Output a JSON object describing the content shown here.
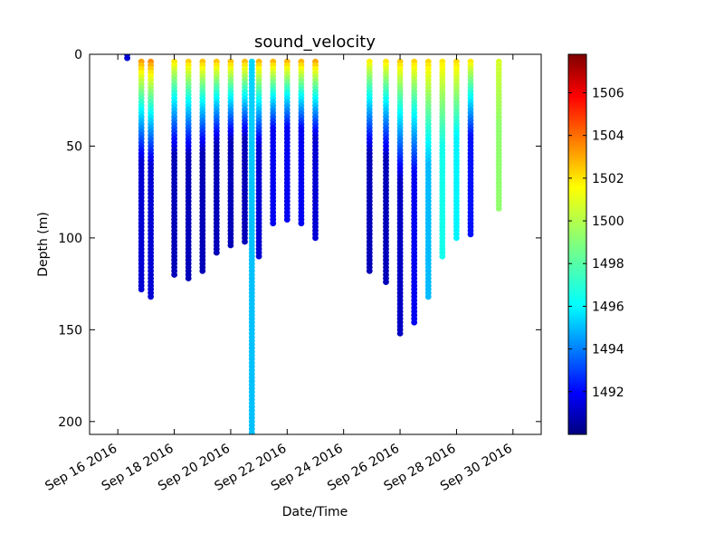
{
  "chart_data": {
    "type": "scatter",
    "title": "sound_velocity",
    "xlabel": "Date/Time",
    "ylabel": "Depth (m)",
    "x_ticks": [
      "Sep 16 2016",
      "Sep 18 2016",
      "Sep 20 2016",
      "Sep 22 2016",
      "Sep 24 2016",
      "Sep 26 2016",
      "Sep 28 2016",
      "Sep 30 2016"
    ],
    "xlim": [
      "2016-09-15",
      "2016-10-01"
    ],
    "ylim": [
      207,
      0
    ],
    "y_inverted": true,
    "y_ticks": [
      "0",
      "50",
      "100",
      "150",
      "200"
    ],
    "grid": false,
    "colorbar": {
      "colormap": "jet",
      "range": [
        1490,
        1507.8
      ],
      "ticks": [
        "1492",
        "1494",
        "1496",
        "1498",
        "1500",
        "1502",
        "1504",
        "1506"
      ]
    },
    "casts": [
      {
        "date": "2016-09-16T08:00",
        "max_depth": 2,
        "sv_surface": 1491.5,
        "sv_deep": 1491.5
      },
      {
        "date": "2016-09-16T20:00",
        "max_depth": 128,
        "sv_surface": 1504.3,
        "sv_deep": 1491.5
      },
      {
        "date": "2016-09-17T04:00",
        "max_depth": 133,
        "sv_surface": 1504.6,
        "sv_deep": 1491.5
      },
      {
        "date": "2016-09-18T00:00",
        "max_depth": 120,
        "sv_surface": 1503.0,
        "sv_deep": 1491.0
      },
      {
        "date": "2016-09-18T12:00",
        "max_depth": 122,
        "sv_surface": 1503.5,
        "sv_deep": 1491.0
      },
      {
        "date": "2016-09-19T00:00",
        "max_depth": 118,
        "sv_surface": 1503.8,
        "sv_deep": 1491.0
      },
      {
        "date": "2016-09-19T12:00",
        "max_depth": 108,
        "sv_surface": 1503.9,
        "sv_deep": 1491.0
      },
      {
        "date": "2016-09-20T00:00",
        "max_depth": 105,
        "sv_surface": 1504.0,
        "sv_deep": 1491.0
      },
      {
        "date": "2016-09-20T12:00",
        "max_depth": 102,
        "sv_surface": 1504.1,
        "sv_deep": 1491.0
      },
      {
        "date": "2016-09-20T18:00",
        "max_depth": 207,
        "sv_surface": 1496.0,
        "sv_deep": 1495.6
      },
      {
        "date": "2016-09-21T00:00",
        "max_depth": 110,
        "sv_surface": 1504.0,
        "sv_deep": 1491.5
      },
      {
        "date": "2016-09-21T12:00",
        "max_depth": 92,
        "sv_surface": 1504.2,
        "sv_deep": 1492.0
      },
      {
        "date": "2016-09-22T00:00",
        "max_depth": 90,
        "sv_surface": 1504.3,
        "sv_deep": 1492.0
      },
      {
        "date": "2016-09-22T12:00",
        "max_depth": 92,
        "sv_surface": 1504.3,
        "sv_deep": 1492.0
      },
      {
        "date": "2016-09-23T00:00",
        "max_depth": 100,
        "sv_surface": 1504.5,
        "sv_deep": 1491.5
      },
      {
        "date": "2016-09-24T22:00",
        "max_depth": 118,
        "sv_surface": 1502.8,
        "sv_deep": 1491.0
      },
      {
        "date": "2016-09-25T12:00",
        "max_depth": 125,
        "sv_surface": 1503.0,
        "sv_deep": 1491.0
      },
      {
        "date": "2016-09-26T00:00",
        "max_depth": 152,
        "sv_surface": 1503.2,
        "sv_deep": 1491.2
      },
      {
        "date": "2016-09-26T12:00",
        "max_depth": 146,
        "sv_surface": 1503.0,
        "sv_deep": 1492.0
      },
      {
        "date": "2016-09-27T00:00",
        "max_depth": 132,
        "sv_surface": 1502.6,
        "sv_deep": 1495.5
      },
      {
        "date": "2016-09-27T12:00",
        "max_depth": 110,
        "sv_surface": 1502.2,
        "sv_deep": 1497.0
      },
      {
        "date": "2016-09-28T00:00",
        "max_depth": 100,
        "sv_surface": 1502.6,
        "sv_deep": 1496.5
      },
      {
        "date": "2016-09-28T12:00",
        "max_depth": 98,
        "sv_surface": 1503.0,
        "sv_deep": 1492.5
      },
      {
        "date": "2016-09-29T12:00",
        "max_depth": 85,
        "sv_surface": 1500.7,
        "sv_deep": 1499.2
      }
    ]
  }
}
